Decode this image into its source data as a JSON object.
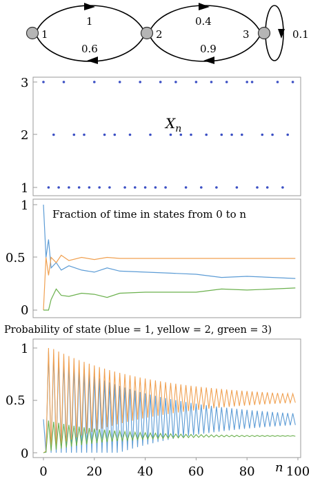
{
  "diagram": {
    "states": [
      "1",
      "2",
      "3"
    ],
    "edges": [
      {
        "from": "1",
        "to": "2",
        "label": "1"
      },
      {
        "from": "2",
        "to": "1",
        "label": "0.6"
      },
      {
        "from": "2",
        "to": "3",
        "label": "0.4"
      },
      {
        "from": "3",
        "to": "2",
        "label": "0.9"
      },
      {
        "from": "3",
        "to": "3",
        "label": "0.1"
      }
    ]
  },
  "chart_data": [
    {
      "type": "scatter",
      "title": "X",
      "title_subscript": "n",
      "yticks": [
        "1",
        "2",
        "3"
      ],
      "ylim": [
        1,
        3
      ],
      "xlim": [
        0,
        100
      ],
      "series": [
        {
          "color": "#3b4fc4",
          "x": [
            0,
            2,
            4,
            6,
            8,
            10,
            12,
            14,
            16,
            18,
            20,
            22,
            24,
            26,
            28,
            30,
            32,
            34,
            36,
            38,
            40,
            42,
            44,
            46,
            48,
            50,
            52,
            54,
            56,
            58,
            60,
            62,
            64,
            66,
            68,
            70,
            72,
            74,
            76,
            78,
            80,
            82,
            84,
            86,
            88,
            90,
            92,
            94,
            96,
            98
          ],
          "values": [
            3,
            1,
            2,
            1,
            3,
            1,
            2,
            1,
            2,
            1,
            3,
            1,
            2,
            1,
            2,
            3,
            1,
            2,
            1,
            3,
            1,
            2,
            1,
            3,
            1,
            2,
            3,
            2,
            1,
            2,
            3,
            1,
            2,
            3,
            1,
            2,
            3,
            2,
            1,
            2,
            3,
            3,
            1,
            2,
            1,
            2,
            3,
            1,
            2,
            3
          ]
        }
      ]
    },
    {
      "type": "line",
      "title": "Fraction of time in states from 0 to n",
      "yticks": [
        "0",
        "0.5",
        "1"
      ],
      "ylim": [
        0,
        1
      ],
      "xlim": [
        0,
        100
      ],
      "series": [
        {
          "color": "#5b9bd5",
          "x": [
            0,
            1,
            2,
            3,
            5,
            7,
            10,
            15,
            20,
            25,
            30,
            40,
            50,
            60,
            70,
            80,
            90,
            99
          ],
          "values": [
            1.0,
            0.5,
            0.67,
            0.4,
            0.45,
            0.38,
            0.42,
            0.38,
            0.36,
            0.4,
            0.37,
            0.36,
            0.35,
            0.34,
            0.31,
            0.32,
            0.31,
            0.3
          ]
        },
        {
          "color": "#f0a050",
          "x": [
            0,
            1,
            2,
            3,
            5,
            7,
            10,
            15,
            20,
            25,
            30,
            40,
            50,
            60,
            70,
            80,
            90,
            99
          ],
          "values": [
            0.0,
            0.5,
            0.33,
            0.5,
            0.45,
            0.52,
            0.47,
            0.5,
            0.48,
            0.5,
            0.49,
            0.49,
            0.49,
            0.49,
            0.49,
            0.49,
            0.49,
            0.49
          ]
        },
        {
          "color": "#6ab04c",
          "x": [
            0,
            1,
            2,
            3,
            5,
            7,
            10,
            15,
            20,
            25,
            30,
            40,
            50,
            60,
            70,
            80,
            90,
            99
          ],
          "values": [
            0.0,
            0.0,
            0.0,
            0.1,
            0.2,
            0.14,
            0.13,
            0.16,
            0.15,
            0.12,
            0.16,
            0.17,
            0.17,
            0.17,
            0.2,
            0.19,
            0.2,
            0.21
          ]
        }
      ]
    },
    {
      "type": "line",
      "title": "Probability of state (blue = 1, yellow = 2, green = 3)",
      "xlabel": "n",
      "xticks": [
        "0",
        "20",
        "40",
        "60",
        "80",
        "100"
      ],
      "yticks": [
        "0",
        "0.5",
        "1"
      ],
      "ylim": [
        0,
        1
      ],
      "xlim": [
        0,
        100
      ],
      "series": [
        {
          "color": "#5b9bd5",
          "start": 1.0,
          "limit": 0.32,
          "amplitude": 0.68,
          "decay": 0.975
        },
        {
          "color": "#f0a050",
          "start": 0.0,
          "limit": 0.52,
          "amplitude": 0.52,
          "decay": 0.975
        },
        {
          "color": "#6ab04c",
          "start": 0.0,
          "limit": 0.16,
          "amplitude": 0.16,
          "decay": 0.96
        }
      ]
    }
  ]
}
